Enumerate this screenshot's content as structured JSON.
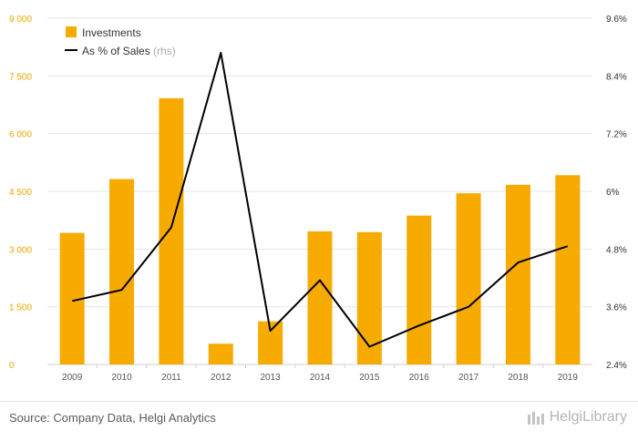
{
  "chart_data": {
    "type": "bar",
    "categories": [
      "2009",
      "2010",
      "2011",
      "2012",
      "2013",
      "2014",
      "2015",
      "2016",
      "2017",
      "2018",
      "2019"
    ],
    "series": [
      {
        "name": "Investments",
        "kind": "bar",
        "axis": "left",
        "values": [
          3420,
          4820,
          6920,
          540,
          1120,
          3460,
          3440,
          3870,
          4450,
          4670,
          4920
        ]
      },
      {
        "name": "As % of Sales",
        "kind": "line",
        "axis": "right",
        "values": [
          3.72,
          3.95,
          5.25,
          8.88,
          3.1,
          4.15,
          2.77,
          3.21,
          3.6,
          4.52,
          4.86
        ]
      }
    ],
    "ylim": [
      0,
      9000
    ],
    "yticks": [
      "0",
      "1 500",
      "3 000",
      "4 500",
      "6 000",
      "7 500",
      "9 000"
    ],
    "y2lim": [
      2.4,
      9.6
    ],
    "y2ticks": [
      "2.4%",
      "3.6%",
      "4.8%",
      "6%",
      "7.2%",
      "8.4%",
      "9.6%"
    ],
    "legend": {
      "placement": "top-left",
      "items": [
        "Investments",
        "As % of Sales"
      ],
      "rhs_note": "(rhs)"
    },
    "colors": {
      "bar": "#f7ab00",
      "line": "#000000",
      "left_axis": "#f0a500",
      "right_axis": "#333333"
    },
    "grid": true
  },
  "footer": {
    "source": "Source: Company Data, Helgi Analytics",
    "brand": "HelgiLibrary",
    "brand_icon": "library-logo-icon"
  }
}
